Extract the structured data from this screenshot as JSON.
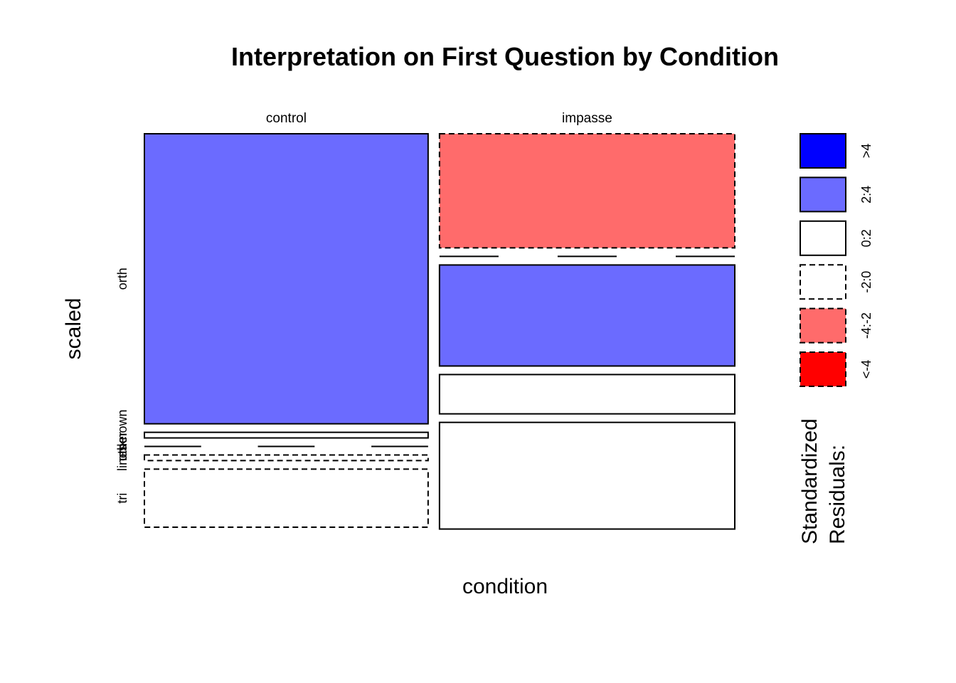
{
  "chart_data": {
    "type": "mosaic",
    "title": "Interpretation on First Question by Condition",
    "xlabel": "condition",
    "ylabel": "scaled",
    "columns": [
      "control",
      "impasse"
    ],
    "rows": [
      "orth",
      "unknown",
      "other",
      "lines",
      "tri"
    ],
    "row_labels_visible": [
      "orth",
      "unknown",
      "other",
      "lines",
      "tri"
    ],
    "cells": [
      {
        "column": "control",
        "row": "orth",
        "proportion": 0.775,
        "residual_class": "2:4"
      },
      {
        "column": "control",
        "row": "unknown",
        "proportion": 0.015,
        "residual_class": "0:2"
      },
      {
        "column": "control",
        "row": "other",
        "proportion": 0.0,
        "residual_class": "0:2"
      },
      {
        "column": "control",
        "row": "lines",
        "proportion": 0.015,
        "residual_class": "-2:0"
      },
      {
        "column": "control",
        "row": "tri",
        "proportion": 0.155,
        "residual_class": "-2:0"
      },
      {
        "column": "impasse",
        "row": "orth",
        "proportion": 0.305,
        "residual_class": "-4:-2"
      },
      {
        "column": "impasse",
        "row": "unknown",
        "proportion": 0.0,
        "residual_class": "0:2"
      },
      {
        "column": "impasse",
        "row": "other",
        "proportion": 0.27,
        "residual_class": "2:4"
      },
      {
        "column": "impasse",
        "row": "lines",
        "proportion": 0.105,
        "residual_class": "0:2"
      },
      {
        "column": "impasse",
        "row": "tri",
        "proportion": 0.285,
        "residual_class": "0:2"
      }
    ],
    "column_proportions": [
      0.49,
      0.51
    ],
    "legend": {
      "title_line1": "Standardized",
      "title_line2": "Residuals:",
      "placement": "right",
      "entries": [
        {
          "label": ">4",
          "fill": "#0000FF",
          "dashed": false
        },
        {
          "label": "2:4",
          "fill": "#6B6BFF",
          "dashed": false
        },
        {
          "label": "0:2",
          "fill": "#FFFFFF",
          "dashed": false
        },
        {
          "label": "-2:0",
          "fill": "#FFFFFF",
          "dashed": true
        },
        {
          "label": "-4:-2",
          "fill": "#FF6B6B",
          "dashed": true
        },
        {
          "label": "<-4",
          "fill": "#FF0000",
          "dashed": true
        }
      ]
    }
  }
}
